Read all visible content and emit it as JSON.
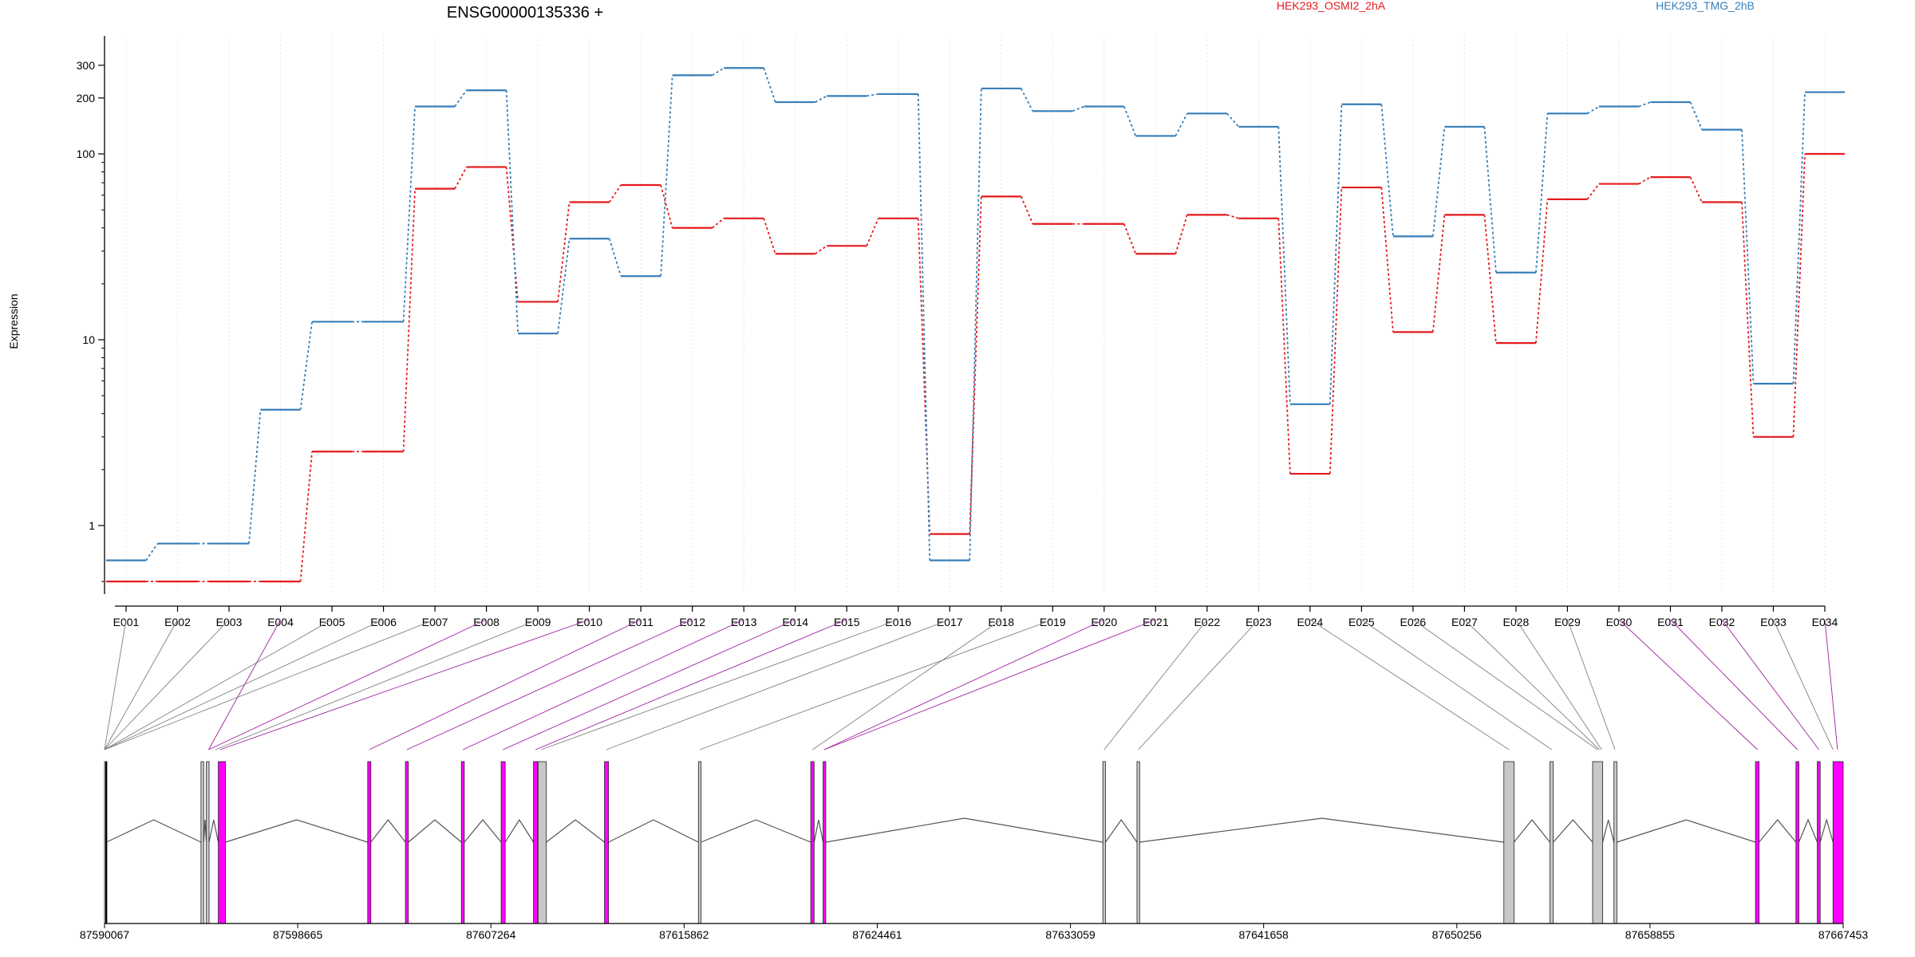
{
  "chart_data": {
    "type": "line",
    "title": "ENSG00000135336 +",
    "ylabel": "Expression",
    "y_scale": "log",
    "ylim": [
      0.5,
      400
    ],
    "yticks": [
      1,
      10,
      100,
      200,
      300
    ],
    "ytick_labels": [
      "1",
      "10",
      "100",
      "200",
      "300"
    ],
    "grid": "vertical dotted lines at each exon",
    "categories": [
      "E001",
      "E002",
      "E003",
      "E004",
      "E005",
      "E006",
      "E007",
      "E008",
      "E009",
      "E010",
      "E011",
      "E012",
      "E013",
      "E014",
      "E015",
      "E016",
      "E017",
      "E018",
      "E019",
      "E020",
      "E021",
      "E022",
      "E023",
      "E024",
      "E025",
      "E026",
      "E027",
      "E028",
      "E029",
      "E030",
      "E031",
      "E032",
      "E033",
      "E034"
    ],
    "series": [
      {
        "name": "HEK293_OSMI2_2hA",
        "color": "#e41a1c",
        "values": [
          0.5,
          0.5,
          0.5,
          0.5,
          2.5,
          2.5,
          65,
          85,
          16,
          55,
          68,
          40,
          45,
          29,
          32,
          45,
          0.9,
          59,
          42,
          42,
          29,
          47,
          45,
          1.9,
          66,
          11,
          47,
          9.6,
          57,
          69,
          75,
          55,
          3.0,
          100
        ]
      },
      {
        "name": "HEK293_TMG_2hB",
        "color": "#377eb8",
        "values": [
          0.65,
          0.8,
          0.8,
          4.2,
          12.5,
          12.5,
          180,
          220,
          10.8,
          35,
          22,
          265,
          290,
          190,
          205,
          210,
          0.65,
          225,
          170,
          180,
          125,
          165,
          140,
          4.5,
          185,
          36,
          140,
          23,
          165,
          180,
          190,
          135,
          5.8,
          215
        ]
      }
    ],
    "genomic_axis": {
      "start": 87590067,
      "end": 87667453,
      "tick_labels": [
        "87590067",
        "87598665",
        "87607264",
        "87615862",
        "87624461",
        "87633059",
        "87641658",
        "87650256",
        "87658855",
        "87667453"
      ]
    },
    "exon_map_colors": {
      "highlight": "#ff00ff",
      "normal": "#c8c8c8",
      "highlight_line": "#a020a0",
      "normal_line": "#808080"
    }
  }
}
